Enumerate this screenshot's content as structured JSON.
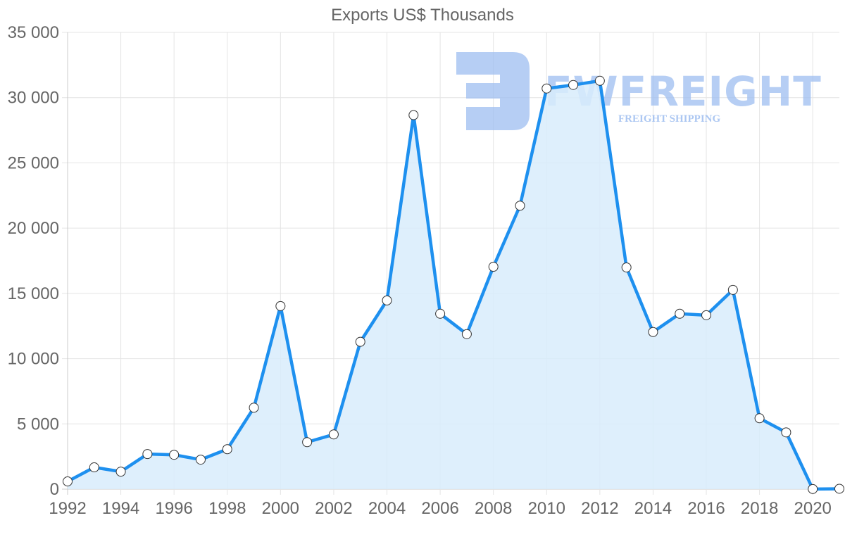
{
  "chart_data": {
    "type": "line",
    "title": "Exports US$ Thousands",
    "xlabel": "",
    "ylabel": "",
    "x": [
      1992,
      1993,
      1994,
      1995,
      1996,
      1997,
      1998,
      1999,
      2000,
      2001,
      2002,
      2003,
      2004,
      2005,
      2006,
      2007,
      2008,
      2009,
      2010,
      2011,
      2012,
      2013,
      2014,
      2015,
      2016,
      2017,
      2018,
      2019,
      2020,
      2021
    ],
    "series": [
      {
        "name": "Exports US$ Thousands",
        "values": [
          590,
          1670,
          1340,
          2690,
          2630,
          2260,
          3060,
          6240,
          14030,
          3600,
          4190,
          11290,
          14460,
          28660,
          13440,
          11880,
          17040,
          21720,
          30700,
          30970,
          31290,
          16990,
          12040,
          13440,
          13330,
          15270,
          5430,
          4350,
          10,
          30
        ],
        "line_color": "#1e90ef",
        "fill_color": "#d8ecfc",
        "fill": true,
        "markers": "white circles"
      }
    ],
    "ylim": [
      0,
      35000
    ],
    "yticks": [
      0,
      5000,
      10000,
      15000,
      20000,
      25000,
      30000,
      35000
    ],
    "ytick_labels": [
      "0",
      "5 000",
      "10 000",
      "15 000",
      "20 000",
      "25 000",
      "30 000",
      "35 000"
    ],
    "xticks": [
      1992,
      1994,
      1996,
      1998,
      2000,
      2002,
      2004,
      2006,
      2008,
      2010,
      2012,
      2014,
      2016,
      2018,
      2020
    ],
    "xtick_labels": [
      "1992",
      "1994",
      "1996",
      "1998",
      "2000",
      "2002",
      "2004",
      "2006",
      "2008",
      "2010",
      "2012",
      "2014",
      "2016",
      "2018",
      "2020"
    ],
    "grid": true,
    "legend": "none"
  },
  "watermark": {
    "brand": "FWFREIGHT",
    "tagline": "FREIGHT SHIPPING",
    "color": "#9dbdf0"
  }
}
